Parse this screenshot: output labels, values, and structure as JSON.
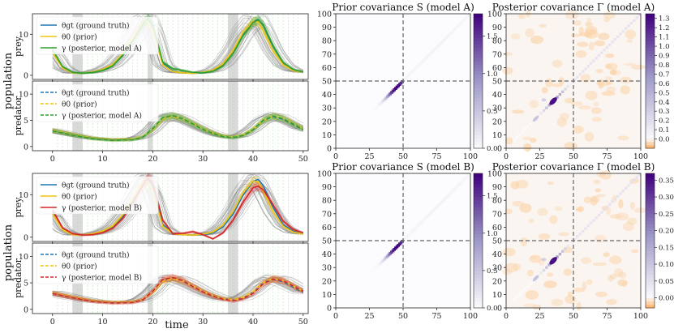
{
  "figure": {
    "shared_ylabel": "population",
    "shared_xlabel": "time"
  },
  "chart_data": [
    {
      "type": "line",
      "panel": "A-prey",
      "ylabel": "prey",
      "xlim": [
        -4,
        51
      ],
      "ylim": [
        -1,
        15
      ],
      "xticks": [
        0,
        10,
        20,
        30,
        40,
        50
      ],
      "yticks": [
        0,
        10
      ],
      "show_xtick_labels": false,
      "shaded_intervals": [
        [
          4,
          6
        ],
        [
          19,
          20
        ],
        [
          35,
          37
        ]
      ],
      "legend": {
        "position": "top-left",
        "entries": [
          "θgt (ground truth)",
          "θ0 (prior)",
          "γ (posterior, model A)"
        ],
        "styles": [
          "solid",
          "solid",
          "solid"
        ]
      },
      "series": [
        {
          "name": "θgt (ground truth)",
          "color": "#1f77b4",
          "dash": "solid",
          "x": [
            0,
            2,
            4,
            6,
            8,
            10,
            12,
            14,
            16,
            18,
            19,
            20,
            22,
            24,
            26,
            28,
            30,
            32,
            34,
            36,
            38,
            40,
            41,
            42,
            44,
            46,
            48,
            50
          ],
          "y": [
            6.0,
            2.0,
            0.7,
            0.5,
            0.7,
            1.2,
            2.3,
            4.8,
            8.3,
            12.5,
            13.8,
            12.0,
            3.0,
            1.0,
            0.6,
            0.5,
            0.6,
            1.0,
            2.4,
            5.4,
            9.8,
            13.1,
            13.6,
            12.2,
            7.0,
            3.0,
            1.4,
            0.8
          ]
        },
        {
          "name": "θ0 (prior)",
          "color": "#f1c40f",
          "dash": "solid",
          "x": [
            0,
            2,
            4,
            6,
            8,
            10,
            12,
            14,
            16,
            18,
            19,
            20,
            22,
            24,
            26,
            28,
            30,
            32,
            34,
            36,
            38,
            40,
            41,
            42,
            44,
            46,
            48,
            50
          ],
          "y": [
            5.6,
            1.8,
            0.6,
            0.5,
            0.8,
            1.4,
            2.6,
            5.2,
            9.0,
            12.8,
            13.2,
            11.0,
            2.6,
            0.9,
            0.6,
            0.5,
            0.7,
            1.2,
            2.8,
            6.0,
            10.4,
            13.2,
            13.0,
            11.0,
            6.0,
            2.6,
            1.2,
            0.8
          ]
        },
        {
          "name": "γ (posterior, model A)",
          "color": "#2ca02c",
          "dash": "solid",
          "x": [
            0,
            2,
            4,
            6,
            8,
            10,
            12,
            14,
            16,
            18,
            19,
            20,
            22,
            24,
            26,
            28,
            30,
            32,
            34,
            36,
            38,
            40,
            41,
            42,
            44,
            46,
            48,
            50
          ],
          "y": [
            6.2,
            2.1,
            0.7,
            0.5,
            0.7,
            1.2,
            2.3,
            4.9,
            8.4,
            12.4,
            13.9,
            12.3,
            3.2,
            1.6,
            1.2,
            0.7,
            0.6,
            1.0,
            2.3,
            5.3,
            9.6,
            12.9,
            13.5,
            12.4,
            7.2,
            3.1,
            1.4,
            0.8
          ]
        }
      ]
    },
    {
      "type": "line",
      "panel": "A-predator",
      "ylabel": "predator",
      "xlim": [
        -4,
        51
      ],
      "ylim": [
        -0.8,
        12.5
      ],
      "xticks": [
        0,
        10,
        20,
        30,
        40,
        50
      ],
      "yticks": [
        0,
        5,
        10
      ],
      "show_xtick_labels": true,
      "shaded_intervals": [
        [
          4,
          6
        ],
        [
          19,
          20
        ],
        [
          35,
          37
        ]
      ],
      "legend": {
        "position": "top-left",
        "entries": [
          "θgt (ground truth)",
          "θ0 (prior)",
          "γ (posterior, model A)"
        ],
        "styles": [
          "dashed",
          "dashed",
          "dashed"
        ]
      },
      "series": [
        {
          "name": "θgt (ground truth)",
          "color": "#1f77b4",
          "dash": "dashed",
          "x": [
            0,
            4,
            8,
            12,
            16,
            18,
            20,
            22,
            24,
            26,
            28,
            30,
            32,
            34,
            36,
            38,
            40,
            42,
            44,
            46,
            48,
            50
          ],
          "y": [
            3.0,
            2.2,
            1.5,
            1.2,
            1.3,
            1.8,
            3.4,
            5.5,
            5.9,
            5.3,
            4.3,
            3.3,
            2.5,
            1.9,
            1.7,
            2.1,
            3.2,
            5.0,
            5.7,
            5.2,
            4.2,
            3.2
          ]
        },
        {
          "name": "θ0 (prior)",
          "color": "#f1c40f",
          "dash": "dashed",
          "x": [
            0,
            4,
            8,
            12,
            16,
            18,
            20,
            22,
            24,
            26,
            28,
            30,
            32,
            34,
            36,
            38,
            40,
            42,
            44,
            46,
            48,
            50
          ],
          "y": [
            3.1,
            2.3,
            1.6,
            1.3,
            1.4,
            1.9,
            3.2,
            5.3,
            5.8,
            5.3,
            4.4,
            3.4,
            2.6,
            2.0,
            1.8,
            2.2,
            3.3,
            5.0,
            5.8,
            5.4,
            4.4,
            3.4
          ]
        },
        {
          "name": "γ (posterior, model A)",
          "color": "#2ca02c",
          "dash": "dashed",
          "x": [
            0,
            4,
            8,
            12,
            16,
            18,
            20,
            22,
            24,
            26,
            28,
            30,
            32,
            34,
            36,
            38,
            40,
            42,
            44,
            46,
            48,
            50
          ],
          "y": [
            3.0,
            2.2,
            1.5,
            1.2,
            1.3,
            1.8,
            3.4,
            5.5,
            5.9,
            5.3,
            4.3,
            3.3,
            2.5,
            1.9,
            1.7,
            2.1,
            3.2,
            5.0,
            5.8,
            5.3,
            4.3,
            3.3
          ]
        }
      ]
    },
    {
      "type": "line",
      "panel": "B-prey",
      "ylabel": "prey",
      "xlim": [
        -4,
        51
      ],
      "ylim": [
        -1,
        15
      ],
      "xticks": [
        0,
        10,
        20,
        30,
        40,
        50
      ],
      "yticks": [
        0,
        10
      ],
      "show_xtick_labels": false,
      "shaded_intervals": [
        [
          4,
          6
        ],
        [
          19,
          20
        ],
        [
          35,
          37
        ]
      ],
      "legend": {
        "position": "top-left",
        "entries": [
          "θgt (ground truth)",
          "θ0 (prior)",
          "γ (posterior, model B)"
        ],
        "styles": [
          "solid",
          "solid",
          "solid"
        ]
      },
      "series": [
        {
          "name": "θgt (ground truth)",
          "color": "#1f77b4",
          "dash": "solid",
          "x": [
            0,
            2,
            4,
            6,
            8,
            10,
            12,
            14,
            16,
            18,
            19,
            20,
            22,
            24,
            26,
            28,
            30,
            32,
            34,
            36,
            38,
            40,
            41,
            42,
            44,
            46,
            48,
            50
          ],
          "y": [
            6.0,
            2.0,
            0.7,
            0.5,
            0.7,
            1.2,
            2.3,
            4.8,
            8.3,
            12.5,
            13.8,
            12.0,
            3.0,
            1.0,
            0.6,
            0.5,
            0.6,
            1.0,
            2.4,
            5.4,
            9.8,
            13.1,
            13.6,
            12.2,
            7.0,
            3.0,
            1.4,
            0.8
          ]
        },
        {
          "name": "θ0 (prior)",
          "color": "#f1c40f",
          "dash": "solid",
          "x": [
            0,
            2,
            4,
            6,
            8,
            10,
            12,
            14,
            16,
            18,
            19,
            20,
            22,
            24,
            26,
            28,
            30,
            32,
            34,
            36,
            38,
            40,
            41,
            42,
            44,
            46,
            48,
            50
          ],
          "y": [
            5.6,
            1.8,
            0.6,
            0.5,
            0.8,
            1.4,
            2.6,
            5.2,
            9.0,
            12.8,
            13.2,
            11.0,
            2.6,
            0.9,
            0.6,
            0.5,
            0.7,
            1.2,
            2.8,
            6.0,
            10.4,
            13.2,
            13.0,
            11.0,
            6.0,
            2.6,
            1.2,
            0.8
          ]
        },
        {
          "name": "γ (posterior, model B)",
          "color": "#d62728",
          "dash": "solid",
          "x": [
            0,
            2,
            4,
            6,
            8,
            10,
            12,
            14,
            16,
            18,
            19,
            20,
            22,
            24,
            26,
            28,
            30,
            32,
            34,
            36,
            38,
            40,
            41,
            42,
            44,
            46,
            48,
            50
          ],
          "y": [
            6.4,
            2.2,
            0.8,
            0.5,
            0.6,
            1.1,
            2.1,
            4.4,
            8.0,
            12.2,
            13.9,
            12.8,
            4.0,
            0.8,
            0.9,
            1.3,
            0.6,
            -0.4,
            1.0,
            4.0,
            8.2,
            11.6,
            12.0,
            11.2,
            7.6,
            3.8,
            1.8,
            1.0
          ]
        }
      ]
    },
    {
      "type": "line",
      "panel": "B-predator",
      "ylabel": "predator",
      "xlim": [
        -4,
        51
      ],
      "ylim": [
        -0.8,
        12.5
      ],
      "xticks": [
        0,
        10,
        20,
        30,
        40,
        50
      ],
      "yticks": [
        0,
        5,
        10
      ],
      "show_xtick_labels": true,
      "shaded_intervals": [
        [
          4,
          6
        ],
        [
          19,
          20
        ],
        [
          35,
          37
        ]
      ],
      "legend": {
        "position": "top-left",
        "entries": [
          "θgt (ground truth)",
          "θ0 (prior)",
          "γ (posterior, model B)"
        ],
        "styles": [
          "dashed",
          "dashed",
          "dashed"
        ]
      },
      "series": [
        {
          "name": "θgt (ground truth)",
          "color": "#1f77b4",
          "dash": "dashed",
          "x": [
            0,
            4,
            8,
            12,
            16,
            18,
            20,
            22,
            24,
            26,
            28,
            30,
            32,
            34,
            36,
            38,
            40,
            42,
            44,
            46,
            48,
            50
          ],
          "y": [
            3.0,
            2.2,
            1.5,
            1.2,
            1.3,
            1.8,
            3.4,
            5.5,
            5.9,
            5.3,
            4.3,
            3.3,
            2.5,
            1.9,
            1.7,
            2.1,
            3.2,
            5.0,
            5.7,
            5.2,
            4.2,
            3.2
          ]
        },
        {
          "name": "θ0 (prior)",
          "color": "#f1c40f",
          "dash": "dashed",
          "x": [
            0,
            4,
            8,
            12,
            16,
            18,
            20,
            22,
            24,
            26,
            28,
            30,
            32,
            34,
            36,
            38,
            40,
            42,
            44,
            46,
            48,
            50
          ],
          "y": [
            3.1,
            2.3,
            1.6,
            1.3,
            1.4,
            1.9,
            3.2,
            5.3,
            5.8,
            5.3,
            4.4,
            3.4,
            2.6,
            2.0,
            1.8,
            2.2,
            3.3,
            5.0,
            5.8,
            5.4,
            4.4,
            3.4
          ]
        },
        {
          "name": "γ (posterior, model B)",
          "color": "#d62728",
          "dash": "dashed",
          "x": [
            0,
            4,
            8,
            12,
            16,
            18,
            20,
            22,
            24,
            26,
            28,
            30,
            32,
            34,
            36,
            38,
            40,
            42,
            44,
            46,
            48,
            50
          ],
          "y": [
            3.0,
            2.2,
            1.5,
            1.2,
            1.3,
            1.8,
            3.4,
            5.6,
            6.0,
            5.4,
            4.3,
            3.3,
            2.5,
            1.9,
            1.6,
            2.0,
            3.0,
            4.8,
            5.7,
            5.4,
            4.4,
            3.4
          ]
        }
      ]
    },
    {
      "type": "heatmap",
      "panel": "prior-A",
      "title": "Prior covariance S (model A)",
      "colormap": "Purples",
      "xlim": [
        0,
        100
      ],
      "ylim": [
        0,
        100
      ],
      "xticks": [
        0,
        25,
        50,
        75,
        100
      ],
      "yticks": [
        0,
        10,
        20,
        30,
        40,
        50,
        60,
        70,
        80,
        90,
        100
      ],
      "crosshair": [
        50,
        50
      ],
      "colorbar": {
        "min": 0,
        "max": 1.8,
        "ticks": [
          0.0,
          0.5,
          1.0,
          1.5
        ]
      },
      "bands": [
        {
          "from": 0,
          "to": 50,
          "peak": 1.8,
          "center": 45,
          "width": 6
        },
        {
          "from": 50,
          "to": 100,
          "peak": 0.15,
          "center": 75,
          "width": 30
        }
      ]
    },
    {
      "type": "heatmap",
      "panel": "posterior-A",
      "title": "Posterior covariance Γ (model A)",
      "colormap": "OrangePurple",
      "xlim": [
        0,
        100
      ],
      "ylim": [
        0,
        100
      ],
      "xticks": [
        0,
        25,
        50,
        75,
        100
      ],
      "yticks": [
        0,
        10,
        20,
        30,
        40,
        50,
        60,
        70,
        80,
        90,
        100
      ],
      "crosshair": [
        50,
        50
      ],
      "colorbar": {
        "min": -0.1,
        "max": 1.35,
        "ticks": [
          0.0,
          0.1,
          0.2,
          0.3,
          0.4,
          0.5,
          0.6,
          0.7,
          0.8,
          0.9,
          1.0,
          1.1,
          1.2,
          1.3
        ]
      },
      "blob": {
        "x": 35,
        "y": 35,
        "value": 1.3
      }
    },
    {
      "type": "heatmap",
      "panel": "prior-B",
      "title": "Prior covariance S (model B)",
      "colormap": "Purples",
      "xlim": [
        0,
        100
      ],
      "ylim": [
        0,
        100
      ],
      "xticks": [
        0,
        25,
        50,
        75,
        100
      ],
      "yticks": [
        0,
        10,
        20,
        30,
        40,
        50,
        60,
        70,
        80,
        90,
        100
      ],
      "crosshair": [
        50,
        50
      ],
      "colorbar": {
        "min": 0,
        "max": 1.8,
        "ticks": [
          0.0,
          0.5,
          1.0,
          1.5
        ]
      },
      "bands": [
        {
          "from": 0,
          "to": 50,
          "peak": 1.8,
          "center": 45,
          "width": 6
        },
        {
          "from": 50,
          "to": 100,
          "peak": 0.15,
          "center": 75,
          "width": 30
        }
      ]
    },
    {
      "type": "heatmap",
      "panel": "posterior-B",
      "title": "Posterior covariance Γ (model B)",
      "colormap": "OrangePurple",
      "xlim": [
        0,
        100
      ],
      "ylim": [
        0,
        100
      ],
      "xticks": [
        0,
        25,
        50,
        75,
        100
      ],
      "yticks": [
        0,
        10,
        20,
        30,
        40,
        50,
        60,
        70,
        80,
        90,
        100
      ],
      "crosshair": [
        50,
        50
      ],
      "colorbar": {
        "min": -0.03,
        "max": 0.37,
        "ticks": [
          0.0,
          0.05,
          0.1,
          0.15,
          0.2,
          0.25,
          0.3,
          0.35
        ],
        "tick_labels": [
          "0.00",
          "0.05",
          "0.10",
          "0.15",
          "0.20",
          "0.25",
          "0.30",
          "0.35"
        ]
      },
      "blob": {
        "x": 35,
        "y": 35,
        "value": 0.35
      }
    }
  ]
}
